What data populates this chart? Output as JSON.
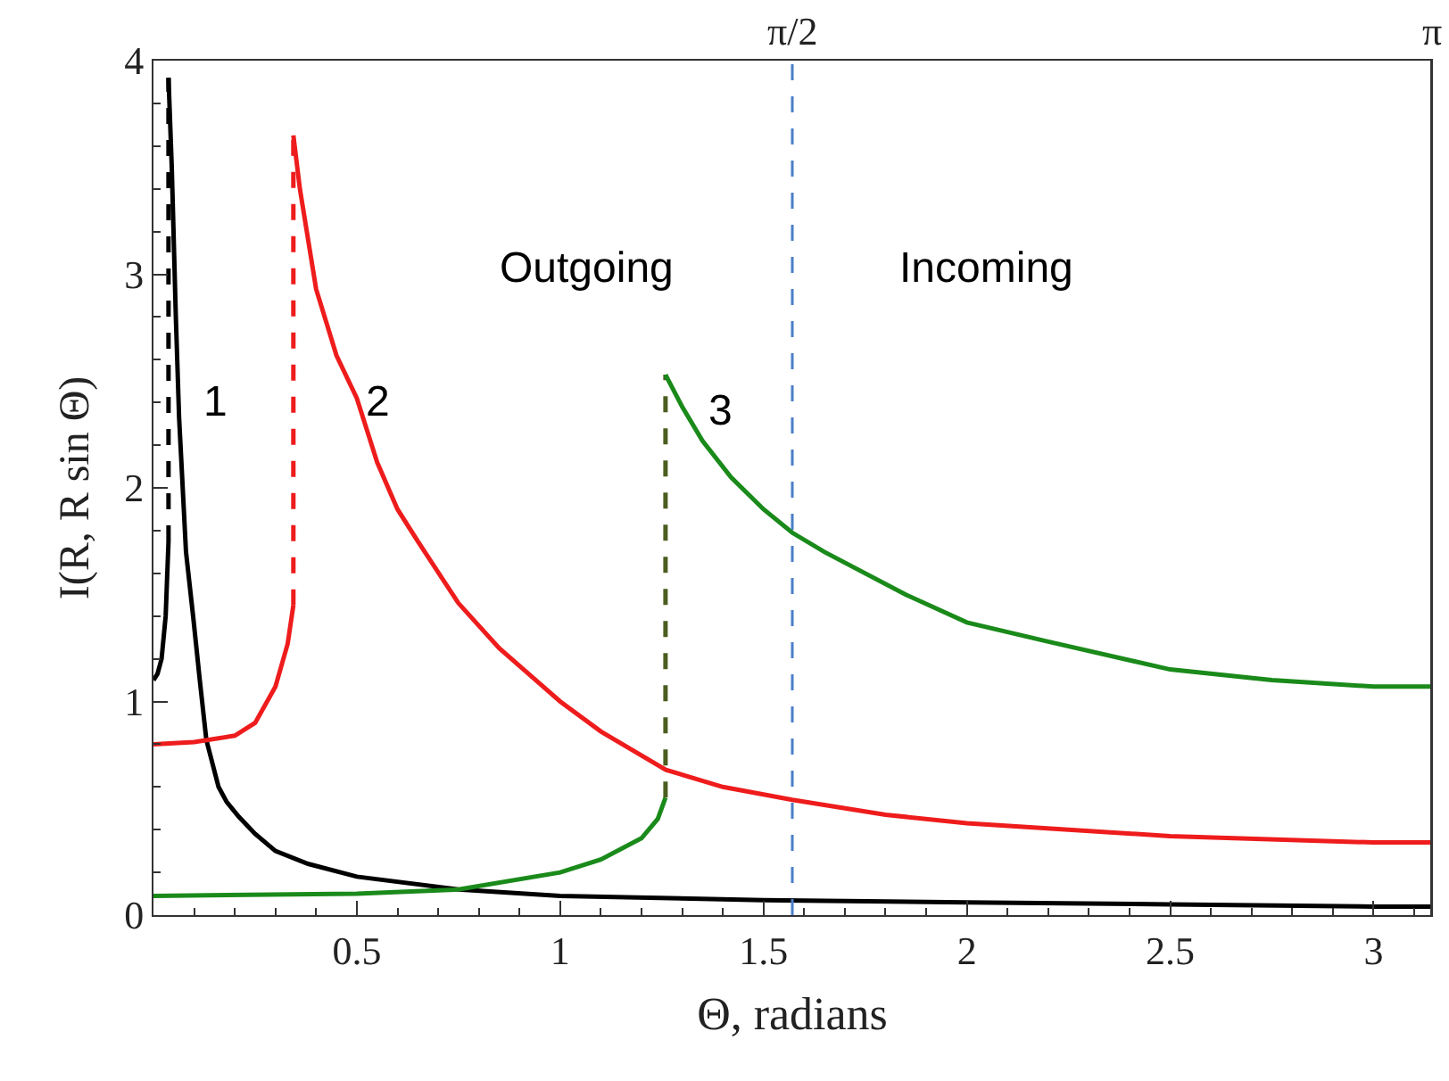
{
  "chart_data": {
    "type": "line",
    "xlabel": "Θ, radians",
    "ylabel": "I(R, R sin Θ)",
    "line_style": "solid",
    "xlim": [
      0,
      3.1416
    ],
    "ylim": [
      0,
      4
    ],
    "xticks": [
      {
        "value": 0.1,
        "label": null
      },
      {
        "value": 0.2,
        "label": null
      },
      {
        "value": 0.3,
        "label": null
      },
      {
        "value": 0.4,
        "label": null
      },
      0.5,
      {
        "value": 0.6,
        "label": null
      },
      {
        "value": 0.7,
        "label": null
      },
      {
        "value": 0.8,
        "label": null
      },
      {
        "value": 0.9,
        "label": null
      },
      1,
      {
        "value": 1.1,
        "label": null
      },
      {
        "value": 1.2,
        "label": null
      },
      {
        "value": 1.3,
        "label": null
      },
      {
        "value": 1.4,
        "label": null
      },
      1.5,
      {
        "value": 1.6,
        "label": null
      },
      {
        "value": 1.7,
        "label": null
      },
      {
        "value": 1.8,
        "label": null
      },
      {
        "value": 1.9,
        "label": null
      },
      2,
      {
        "value": 2.1,
        "label": null
      },
      {
        "value": 2.2,
        "label": null
      },
      {
        "value": 2.3,
        "label": null
      },
      {
        "value": 2.4,
        "label": null
      },
      2.5,
      {
        "value": 2.6,
        "label": null
      },
      {
        "value": 2.7,
        "label": null
      },
      {
        "value": 2.8,
        "label": null
      },
      {
        "value": 2.9,
        "label": null
      },
      3,
      {
        "value": 3.1,
        "label": null
      }
    ],
    "yticks": [
      0,
      {
        "value": 0.2,
        "label": null
      },
      {
        "value": 0.4,
        "label": null
      },
      {
        "value": 0.6,
        "label": null
      },
      {
        "value": 0.8,
        "label": null
      },
      1,
      {
        "value": 1.2,
        "label": null
      },
      {
        "value": 1.4,
        "label": null
      },
      {
        "value": 1.6,
        "label": null
      },
      {
        "value": 1.8,
        "label": null
      },
      2,
      {
        "value": 2.2,
        "label": null
      },
      {
        "value": 2.4,
        "label": null
      },
      {
        "value": 2.6,
        "label": null
      },
      {
        "value": 2.8,
        "label": null
      },
      3,
      {
        "value": 3.2,
        "label": null
      },
      {
        "value": 3.4,
        "label": null
      },
      {
        "value": 3.6,
        "label": null
      },
      {
        "value": 3.8,
        "label": null
      },
      4
    ],
    "x2lim": [
      0,
      3.1416
    ],
    "x2ticks": [
      {
        "value": 1.5708,
        "label": "π/2"
      },
      {
        "value": 3.1416,
        "label": "π"
      }
    ],
    "series": [
      {
        "color": "#000000",
        "x": [
          0,
          0.01,
          0.02,
          0.03,
          0.033,
          0.037
        ],
        "values": [
          1.1,
          1.13,
          1.2,
          1.4,
          1.55,
          1.75
        ]
      },
      {
        "color": "#000000",
        "line_style": "dashed",
        "x": [
          0.037,
          0.037
        ],
        "values": [
          1.75,
          3.92
        ]
      },
      {
        "color": "#000000",
        "x": [
          0.037,
          0.045,
          0.055,
          0.063,
          0.08,
          0.098,
          0.115,
          0.13,
          0.16,
          0.18,
          0.21,
          0.25,
          0.3,
          0.38,
          0.5,
          0.75,
          1,
          1.5,
          2,
          2.5,
          3,
          3.1416
        ],
        "values": [
          3.92,
          3.5,
          2.8,
          2.33,
          1.7,
          1.39,
          1.08,
          0.82,
          0.6,
          0.53,
          0.46,
          0.38,
          0.3,
          0.24,
          0.18,
          0.12,
          0.09,
          0.07,
          0.06,
          0.05,
          0.04,
          0.04
        ]
      },
      {
        "color": "#ee1c1c",
        "x": [
          0,
          0.1,
          0.2,
          0.25,
          0.3,
          0.33,
          0.344
        ],
        "values": [
          0.8,
          0.81,
          0.84,
          0.9,
          1.07,
          1.27,
          1.45
        ]
      },
      {
        "color": "#ee1c1c",
        "line_style": "dashed",
        "x": [
          0.344,
          0.344
        ],
        "values": [
          1.45,
          3.65
        ]
      },
      {
        "color": "#ee1c1c",
        "x": [
          0.344,
          0.36,
          0.4,
          0.45,
          0.5,
          0.55,
          0.6,
          0.65,
          0.75,
          0.85,
          1,
          1.1,
          1.26,
          1.4,
          1.5708,
          1.8,
          2,
          2.5,
          3,
          3.1416
        ],
        "values": [
          3.65,
          3.4,
          2.93,
          2.62,
          2.42,
          2.12,
          1.9,
          1.75,
          1.46,
          1.25,
          1,
          0.86,
          0.68,
          0.6,
          0.54,
          0.47,
          0.43,
          0.37,
          0.34,
          0.34
        ]
      },
      {
        "color": "#1a8a1a",
        "x": [
          0,
          0.5,
          0.75,
          1,
          1.1,
          1.2,
          1.24,
          1.259
        ],
        "values": [
          0.09,
          0.1,
          0.12,
          0.2,
          0.26,
          0.36,
          0.45,
          0.55
        ]
      },
      {
        "color": "#4b5e1f",
        "line_style": "dashed",
        "x": [
          1.259,
          1.259
        ],
        "values": [
          0.55,
          2.53
        ]
      },
      {
        "color": "#1a8a1a",
        "x": [
          1.259,
          1.3,
          1.35,
          1.42,
          1.5,
          1.5708,
          1.65,
          1.85,
          2,
          2.2,
          2.5,
          2.75,
          3,
          3.1416
        ],
        "values": [
          2.53,
          2.38,
          2.22,
          2.05,
          1.9,
          1.79,
          1.7,
          1.5,
          1.37,
          1.28,
          1.15,
          1.1,
          1.07,
          1.07
        ]
      }
    ],
    "ref_lines": [
      {
        "axis": "x",
        "value": 1.5708,
        "color": "#4a7fc8",
        "line_style": "dashed"
      }
    ],
    "annotations": [
      "1",
      "2",
      "3",
      "Outgoing",
      "Incoming"
    ]
  }
}
